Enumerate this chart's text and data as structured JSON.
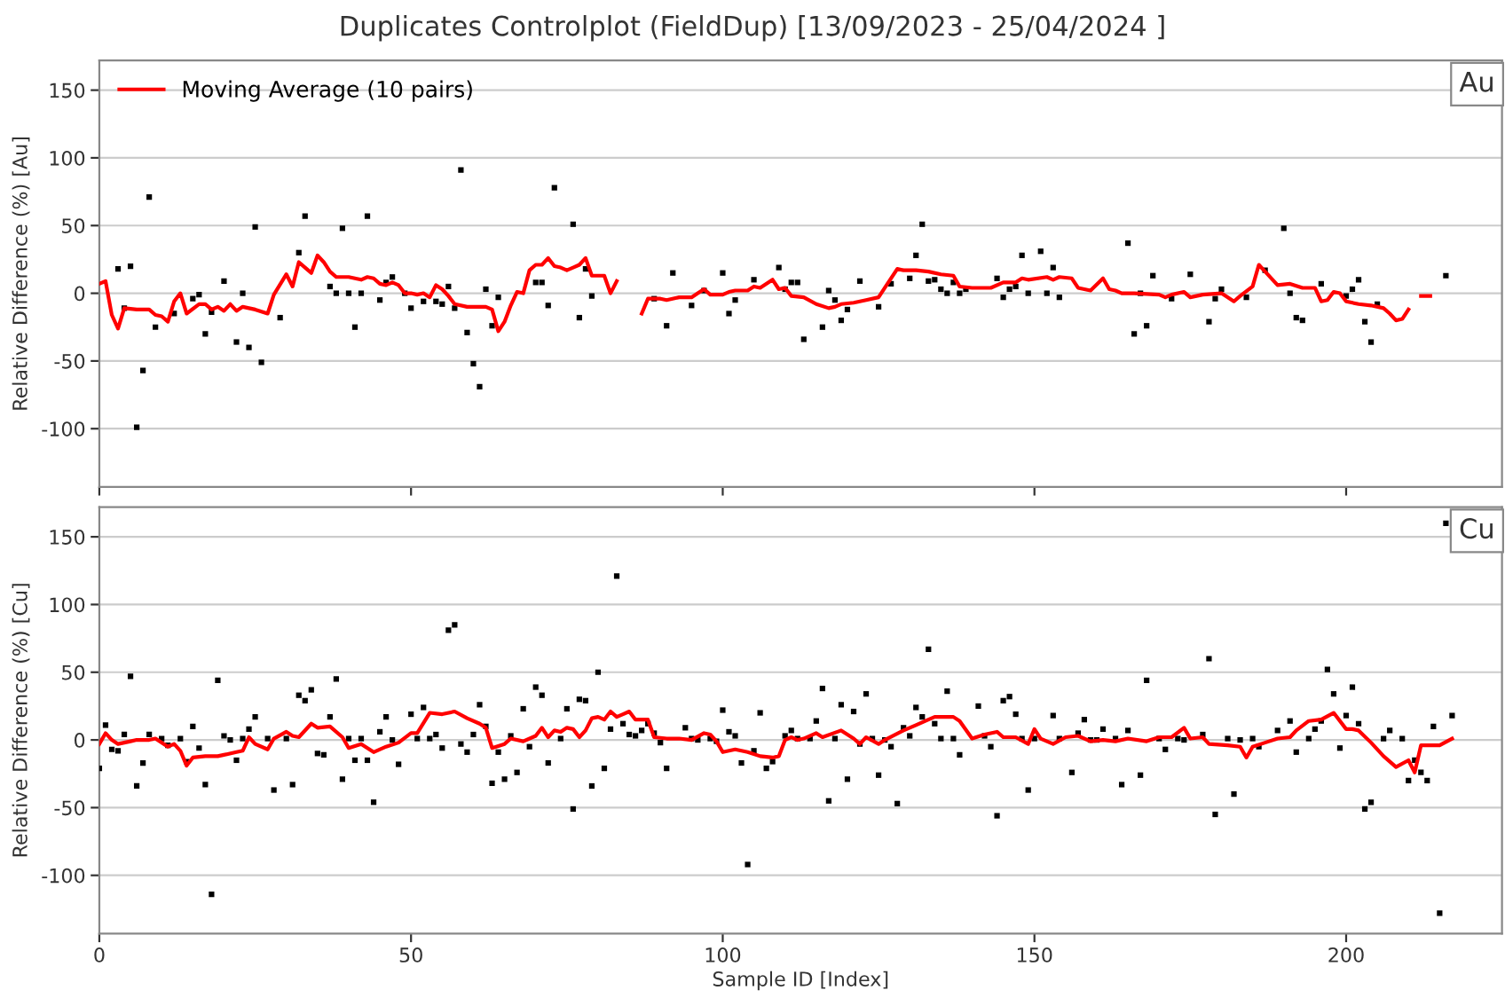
{
  "chart_data": [
    {
      "type": "scatter",
      "title": "Duplicates Controlplot (FieldDup) [13/09/2023 - 25/04/2024 ]",
      "ylabel": "Relative Difference (%) [Au]",
      "annotations": [
        "Au"
      ],
      "xlim": [
        0,
        225
      ],
      "xticks": [
        0,
        50,
        100,
        150,
        200
      ],
      "ylim": [
        -143,
        172
      ],
      "yticks": [
        -100,
        -50,
        0,
        50,
        100,
        150
      ],
      "grid": "y",
      "legend": "top left",
      "tick_labels": "y",
      "series": [
        {
          "color": "#000000",
          "marker": "square",
          "x": [
            3,
            4,
            5,
            6,
            7,
            8,
            9,
            12,
            15,
            16,
            17,
            18,
            20,
            22,
            23,
            24,
            25,
            26,
            29,
            32,
            33,
            37,
            38,
            39,
            40,
            41,
            42,
            43,
            45,
            46,
            47,
            49,
            50,
            52,
            54,
            55,
            56,
            57,
            58,
            59,
            60,
            61,
            62,
            63,
            64,
            70,
            71,
            72,
            73,
            76,
            77,
            78,
            79,
            89,
            91,
            92,
            95,
            97,
            100,
            101,
            102,
            105,
            109,
            110,
            111,
            112,
            113,
            116,
            117,
            118,
            119,
            120,
            122,
            125,
            127,
            130,
            131,
            132,
            133,
            134,
            135,
            136,
            137,
            138,
            139,
            144,
            145,
            146,
            147,
            148,
            149,
            151,
            152,
            153,
            154,
            165,
            166,
            167,
            168,
            169,
            172,
            175,
            178,
            179,
            180,
            184,
            187,
            190,
            191,
            192,
            193,
            196,
            200,
            201,
            202,
            203,
            204,
            205,
            216
          ],
          "values": [
            18,
            -11,
            20,
            -99,
            -57,
            71,
            -25,
            -15,
            -4,
            -1,
            -30,
            -14,
            9,
            -36,
            0,
            -40,
            49,
            -51,
            -18,
            30,
            57,
            5,
            0,
            48,
            0,
            -25,
            0,
            57,
            -5,
            8,
            12,
            0,
            -11,
            -6,
            -6,
            -8,
            5,
            -11,
            91,
            -29,
            -52,
            -69,
            3,
            -24,
            -3,
            8,
            8,
            -9,
            78,
            51,
            -18,
            18,
            -2,
            -4,
            -24,
            15,
            -9,
            2,
            15,
            -15,
            -5,
            10,
            19,
            3,
            8,
            8,
            -34,
            -25,
            2,
            -5,
            -20,
            -12,
            9,
            -10,
            7,
            11,
            28,
            51,
            9,
            10,
            3,
            0,
            8,
            0,
            3,
            11,
            -3,
            3,
            5,
            28,
            0,
            31,
            0,
            19,
            -3,
            37,
            -30,
            0,
            -24,
            13,
            -4,
            14,
            -21,
            -4,
            3,
            -3,
            17,
            48,
            0,
            -18,
            -20,
            7,
            -2,
            3,
            10,
            -21,
            -36,
            -8,
            13
          ]
        },
        {
          "type": "line",
          "name": "Moving Average (10 pairs)",
          "color": "#ff0000",
          "marker": "none",
          "line_style": "solid",
          "x": [
            0,
            1,
            2,
            3,
            4,
            6,
            8,
            9,
            10,
            11,
            12,
            13,
            14,
            16,
            17,
            18,
            19,
            20,
            21,
            22,
            23,
            25,
            27,
            28,
            30,
            31,
            32,
            33,
            34,
            35,
            36,
            37,
            38,
            40,
            42,
            43,
            44,
            45,
            46,
            47,
            48,
            49,
            50,
            51,
            52,
            53,
            54,
            55,
            56,
            57,
            59,
            61,
            62,
            63,
            64,
            65,
            66,
            67,
            68,
            69,
            70,
            71,
            72,
            73,
            74,
            75,
            76,
            77,
            78,
            79,
            80,
            81,
            82,
            83,
            85,
            87,
            88,
            90,
            91,
            93,
            95,
            96,
            97,
            98,
            100,
            101,
            102,
            104,
            105,
            106,
            108,
            109,
            110,
            111,
            113,
            115,
            117,
            118,
            119,
            121,
            123,
            125,
            126,
            128,
            129,
            131,
            133,
            135,
            137,
            138,
            140,
            143,
            145,
            147,
            148,
            149,
            152,
            153,
            154,
            156,
            157,
            159,
            161,
            162,
            163,
            164,
            166,
            170,
            171,
            172,
            174,
            175,
            177,
            180,
            182,
            183,
            185,
            186,
            187,
            189,
            191,
            193,
            195,
            196,
            197,
            198,
            199,
            200,
            202,
            204,
            206,
            207,
            208,
            209,
            210,
            211,
            212,
            213.5
          ],
          "values": [
            7,
            9,
            -16,
            -26,
            -11,
            -12,
            -12,
            -16,
            -17,
            -21,
            -6,
            0,
            -15,
            -8,
            -8,
            -12,
            -10,
            -13,
            -8,
            -13,
            -10,
            -12,
            -15,
            -1,
            14,
            5,
            23,
            19,
            15,
            28,
            23,
            16,
            12,
            12,
            10,
            12,
            11,
            7,
            6,
            8,
            6,
            0,
            0,
            -1,
            0,
            -3,
            6,
            3,
            -2,
            -8,
            -10,
            -10,
            -10,
            -12,
            -28,
            -21,
            -9,
            1,
            0,
            17,
            21,
            21,
            26,
            20,
            19,
            17,
            19,
            21,
            26,
            13,
            13,
            13,
            0,
            9,
            null,
            -15,
            -4,
            -4,
            -5,
            -3,
            -3,
            0,
            3,
            -1,
            -1,
            1,
            2,
            2,
            5,
            4,
            10,
            3,
            4,
            -2,
            -3,
            -8,
            -11,
            -10,
            -8,
            -7,
            -5,
            -3,
            4,
            18,
            17,
            17,
            16,
            14,
            13,
            5,
            4,
            4,
            8,
            8,
            11,
            10,
            12,
            10,
            12,
            11,
            4,
            2,
            11,
            3,
            2,
            0,
            0,
            -1,
            -3,
            -1,
            1,
            -3,
            -1,
            0,
            -6,
            -2,
            5,
            21,
            16,
            6,
            7,
            4,
            4,
            -6,
            -5,
            1,
            0,
            -6,
            -8,
            -9,
            -11,
            -15,
            -20,
            -19,
            -12,
            null,
            -2,
            -2
          ]
        }
      ]
    },
    {
      "type": "scatter",
      "xlabel": "Sample ID [Index]",
      "ylabel": "Relative Difference (%) [Cu]",
      "annotations": [
        "Cu"
      ],
      "xlim": [
        0,
        225
      ],
      "xticks": [
        0,
        50,
        100,
        150,
        200
      ],
      "ylim": [
        -143,
        172
      ],
      "yticks": [
        -100,
        -50,
        0,
        50,
        100,
        150
      ],
      "grid": "y",
      "series": [
        {
          "color": "#000000",
          "marker": "square",
          "x": [
            0,
            1,
            2,
            3,
            4,
            5,
            6,
            7,
            8,
            10,
            11,
            13,
            14,
            15,
            16,
            17,
            18,
            19,
            20,
            21,
            22,
            23,
            24,
            25,
            27,
            28,
            30,
            31,
            32,
            33,
            34,
            35,
            36,
            37,
            38,
            39,
            40,
            41,
            42,
            43,
            44,
            45,
            46,
            47,
            48,
            50,
            51,
            52,
            53,
            54,
            55,
            56,
            57,
            58,
            59,
            60,
            61,
            62,
            63,
            64,
            65,
            66,
            67,
            68,
            69,
            70,
            71,
            72,
            74,
            75,
            76,
            77,
            78,
            79,
            80,
            81,
            82,
            83,
            84,
            85,
            86,
            87,
            88,
            89,
            90,
            91,
            94,
            95,
            96,
            98,
            99,
            100,
            101,
            102,
            103,
            104,
            105,
            106,
            107,
            108,
            110,
            111,
            112,
            114,
            115,
            116,
            117,
            118,
            119,
            120,
            121,
            122,
            123,
            124,
            125,
            126,
            127,
            128,
            129,
            130,
            131,
            132,
            133,
            134,
            135,
            136,
            137,
            138,
            141,
            142,
            143,
            144,
            145,
            146,
            147,
            148,
            149,
            150,
            153,
            154,
            156,
            157,
            158,
            159,
            160,
            161,
            163,
            164,
            165,
            167,
            168,
            170,
            171,
            173,
            174,
            177,
            178,
            179,
            181,
            182,
            183,
            185,
            186,
            189,
            191,
            192,
            194,
            195,
            196,
            197,
            198,
            199,
            200,
            201,
            202,
            203,
            204,
            206,
            207,
            209,
            210,
            211,
            212,
            213,
            214,
            215,
            216,
            217
          ],
          "values": [
            -21,
            11,
            -7,
            -8,
            4,
            47,
            -34,
            -17,
            4,
            1,
            -4,
            1,
            -16,
            10,
            -6,
            -33,
            -114,
            44,
            3,
            0,
            -15,
            1,
            8,
            17,
            1,
            -37,
            1,
            -33,
            33,
            29,
            37,
            -10,
            -11,
            17,
            45,
            -29,
            1,
            -15,
            1,
            -15,
            -46,
            6,
            17,
            0,
            -18,
            19,
            1,
            24,
            1,
            4,
            -6,
            81,
            85,
            -3,
            -9,
            4,
            26,
            10,
            -32,
            -9,
            -29,
            3,
            -24,
            23,
            -5,
            39,
            33,
            -17,
            1,
            23,
            -51,
            30,
            29,
            -34,
            50,
            -21,
            8,
            121,
            12,
            4,
            3,
            7,
            12,
            5,
            -2,
            -21,
            9,
            1,
            0,
            1,
            -1,
            22,
            6,
            3,
            -17,
            -92,
            -8,
            20,
            -21,
            -16,
            3,
            7,
            1,
            1,
            14,
            38,
            -45,
            1,
            26,
            -29,
            21,
            -3,
            34,
            1,
            -26,
            0,
            -5,
            -47,
            9,
            3,
            24,
            17,
            67,
            12,
            1,
            36,
            1,
            -11,
            25,
            3,
            -5,
            -56,
            29,
            32,
            19,
            1,
            -37,
            1,
            18,
            1,
            -24,
            5,
            15,
            0,
            0,
            8,
            1,
            -33,
            7,
            -26,
            44,
            1,
            -7,
            1,
            0,
            4,
            60,
            -55,
            1,
            -40,
            0,
            1,
            -5,
            7,
            14,
            -9,
            1,
            8,
            14,
            52,
            34,
            -6,
            18,
            39,
            12,
            -51,
            -46,
            1,
            7,
            1,
            -30,
            -15,
            -24,
            -30,
            10,
            -128,
            160,
            18
          ]
        },
        {
          "type": "line",
          "color": "#ff0000",
          "marker": "none",
          "line_style": "solid",
          "x": [
            0,
            1,
            2,
            3,
            5,
            6,
            8,
            9,
            11,
            12,
            13,
            14,
            15,
            17,
            19,
            20,
            22,
            23,
            24,
            25,
            27,
            28,
            30,
            31,
            32,
            34,
            35,
            37,
            39,
            40,
            42,
            44,
            46,
            48,
            50,
            51,
            53,
            55,
            57,
            59,
            61,
            62,
            63,
            65,
            66,
            68,
            70,
            71,
            72,
            73,
            74,
            75,
            76,
            77,
            78,
            79,
            80,
            81,
            82,
            83,
            84,
            85,
            86,
            88,
            89,
            91,
            93,
            95,
            97,
            98,
            99,
            100,
            102,
            104,
            106,
            108,
            109,
            110,
            111,
            112,
            113,
            115,
            116,
            119,
            121,
            122,
            123,
            125,
            126,
            129,
            131,
            133,
            134,
            137,
            138,
            140,
            142,
            144,
            145,
            147,
            149,
            150,
            151,
            153,
            155,
            157,
            159,
            161,
            163,
            165,
            168,
            170,
            172,
            174,
            175,
            177,
            178,
            181,
            183,
            184,
            185,
            187,
            189,
            191,
            192,
            194,
            196,
            198,
            200,
            201,
            202,
            204,
            206,
            208,
            210,
            211,
            212,
            215,
            217
          ],
          "values": [
            -3,
            5,
            0,
            -3,
            -1,
            0,
            0,
            1,
            -5,
            -3,
            -8,
            -19,
            -13,
            -12,
            -12,
            -11,
            -9,
            -8,
            2,
            -3,
            -7,
            1,
            6,
            3,
            2,
            12,
            9,
            10,
            2,
            -6,
            -3,
            -9,
            -5,
            -2,
            5,
            5,
            20,
            19,
            21,
            16,
            12,
            9,
            -6,
            -3,
            1,
            -1,
            3,
            9,
            2,
            7,
            6,
            9,
            8,
            2,
            7,
            16,
            17,
            15,
            21,
            17,
            19,
            21,
            15,
            15,
            2,
            1,
            1,
            0,
            5,
            4,
            -1,
            -9,
            -7,
            -9,
            -12,
            -13,
            -12,
            0,
            2,
            0,
            1,
            5,
            2,
            7,
            1,
            -3,
            2,
            -3,
            0,
            7,
            11,
            15,
            17,
            17,
            14,
            1,
            4,
            6,
            2,
            2,
            -3,
            8,
            1,
            -3,
            2,
            3,
            -1,
            0,
            -1,
            1,
            -1,
            2,
            2,
            9,
            1,
            2,
            -3,
            -4,
            -5,
            -13,
            -5,
            -2,
            1,
            2,
            7,
            14,
            15,
            20,
            8,
            8,
            7,
            -2,
            -12,
            -20,
            -15,
            -24,
            -4,
            -4,
            1
          ]
        }
      ]
    }
  ]
}
